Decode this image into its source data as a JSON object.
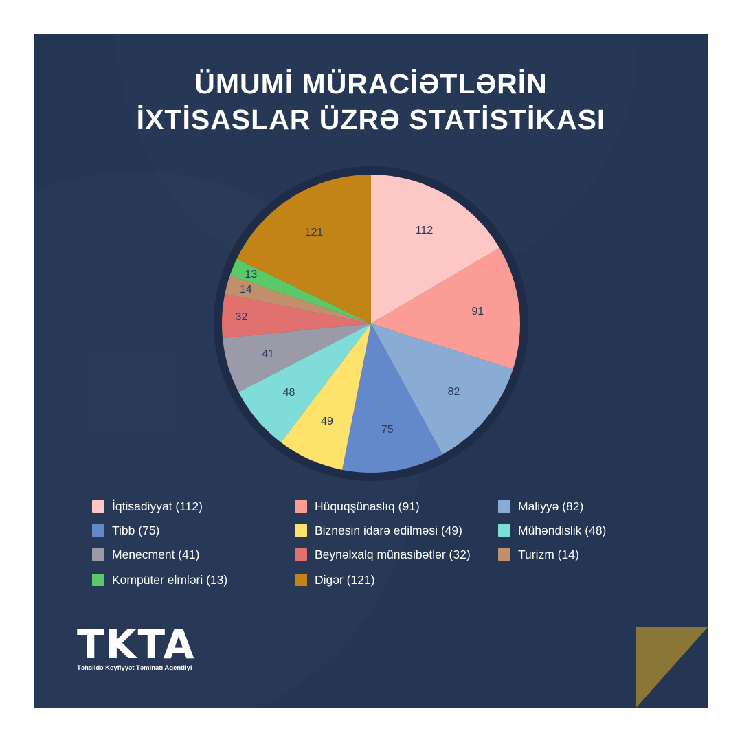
{
  "title": {
    "line1": "ÜMUMİ MÜRACİƏTLƏRİN",
    "line2": "İXTİSASLAR ÜZRƏ STATİSTİKASI"
  },
  "colors": {
    "background": "#243654",
    "accent": "#8a7738"
  },
  "chart_data": {
    "type": "pie",
    "title": "ÜMUMİ MÜRACİƏTLƏRİN İXTİSASLAR ÜZRƏ STATİSTİKASI",
    "legend_position": "bottom",
    "slices": [
      {
        "label": "İqtisadiyyat",
        "value": 112,
        "color": "#fdc7c6",
        "legend": "İqtisadiyyat (112)"
      },
      {
        "label": "Hüquqşünaslıq",
        "value": 91,
        "color": "#fb9c97",
        "legend": "Hüquqşünaslıq (91)"
      },
      {
        "label": "Maliyyə",
        "value": 82,
        "color": "#8aabd4",
        "legend": "Maliyyə (82)"
      },
      {
        "label": "Tibb",
        "value": 75,
        "color": "#6489cb",
        "legend": "Tibb (75)"
      },
      {
        "label": "Biznesin idarə edilməsi",
        "value": 49,
        "color": "#fde26c",
        "legend": "Biznesin idarə edilməsi (49)"
      },
      {
        "label": "Mühəndislik",
        "value": 48,
        "color": "#7fdcd8",
        "legend": "Mühəndislik (48)"
      },
      {
        "label": "Menecment",
        "value": 41,
        "color": "#9a9aa8",
        "legend": "Menecment (41)"
      },
      {
        "label": "Beynəlxalq münasibətlər",
        "value": 32,
        "color": "#e0716f",
        "legend": "Beynəlxalq münasibətlər (32)"
      },
      {
        "label": "Turizm",
        "value": 14,
        "color": "#c18f6b",
        "legend": "Turizm (14)"
      },
      {
        "label": "Kompüter elmləri",
        "value": 13,
        "color": "#5cc969",
        "legend": "Kompüter elmləri (13)"
      },
      {
        "label": "Digər",
        "value": 121,
        "color": "#c38417",
        "legend": "Digər (121)"
      }
    ]
  },
  "logo": {
    "name": "TKTA",
    "subtitle": "Təhsildə Keyfiyyət Təminatı Agentliyi"
  }
}
